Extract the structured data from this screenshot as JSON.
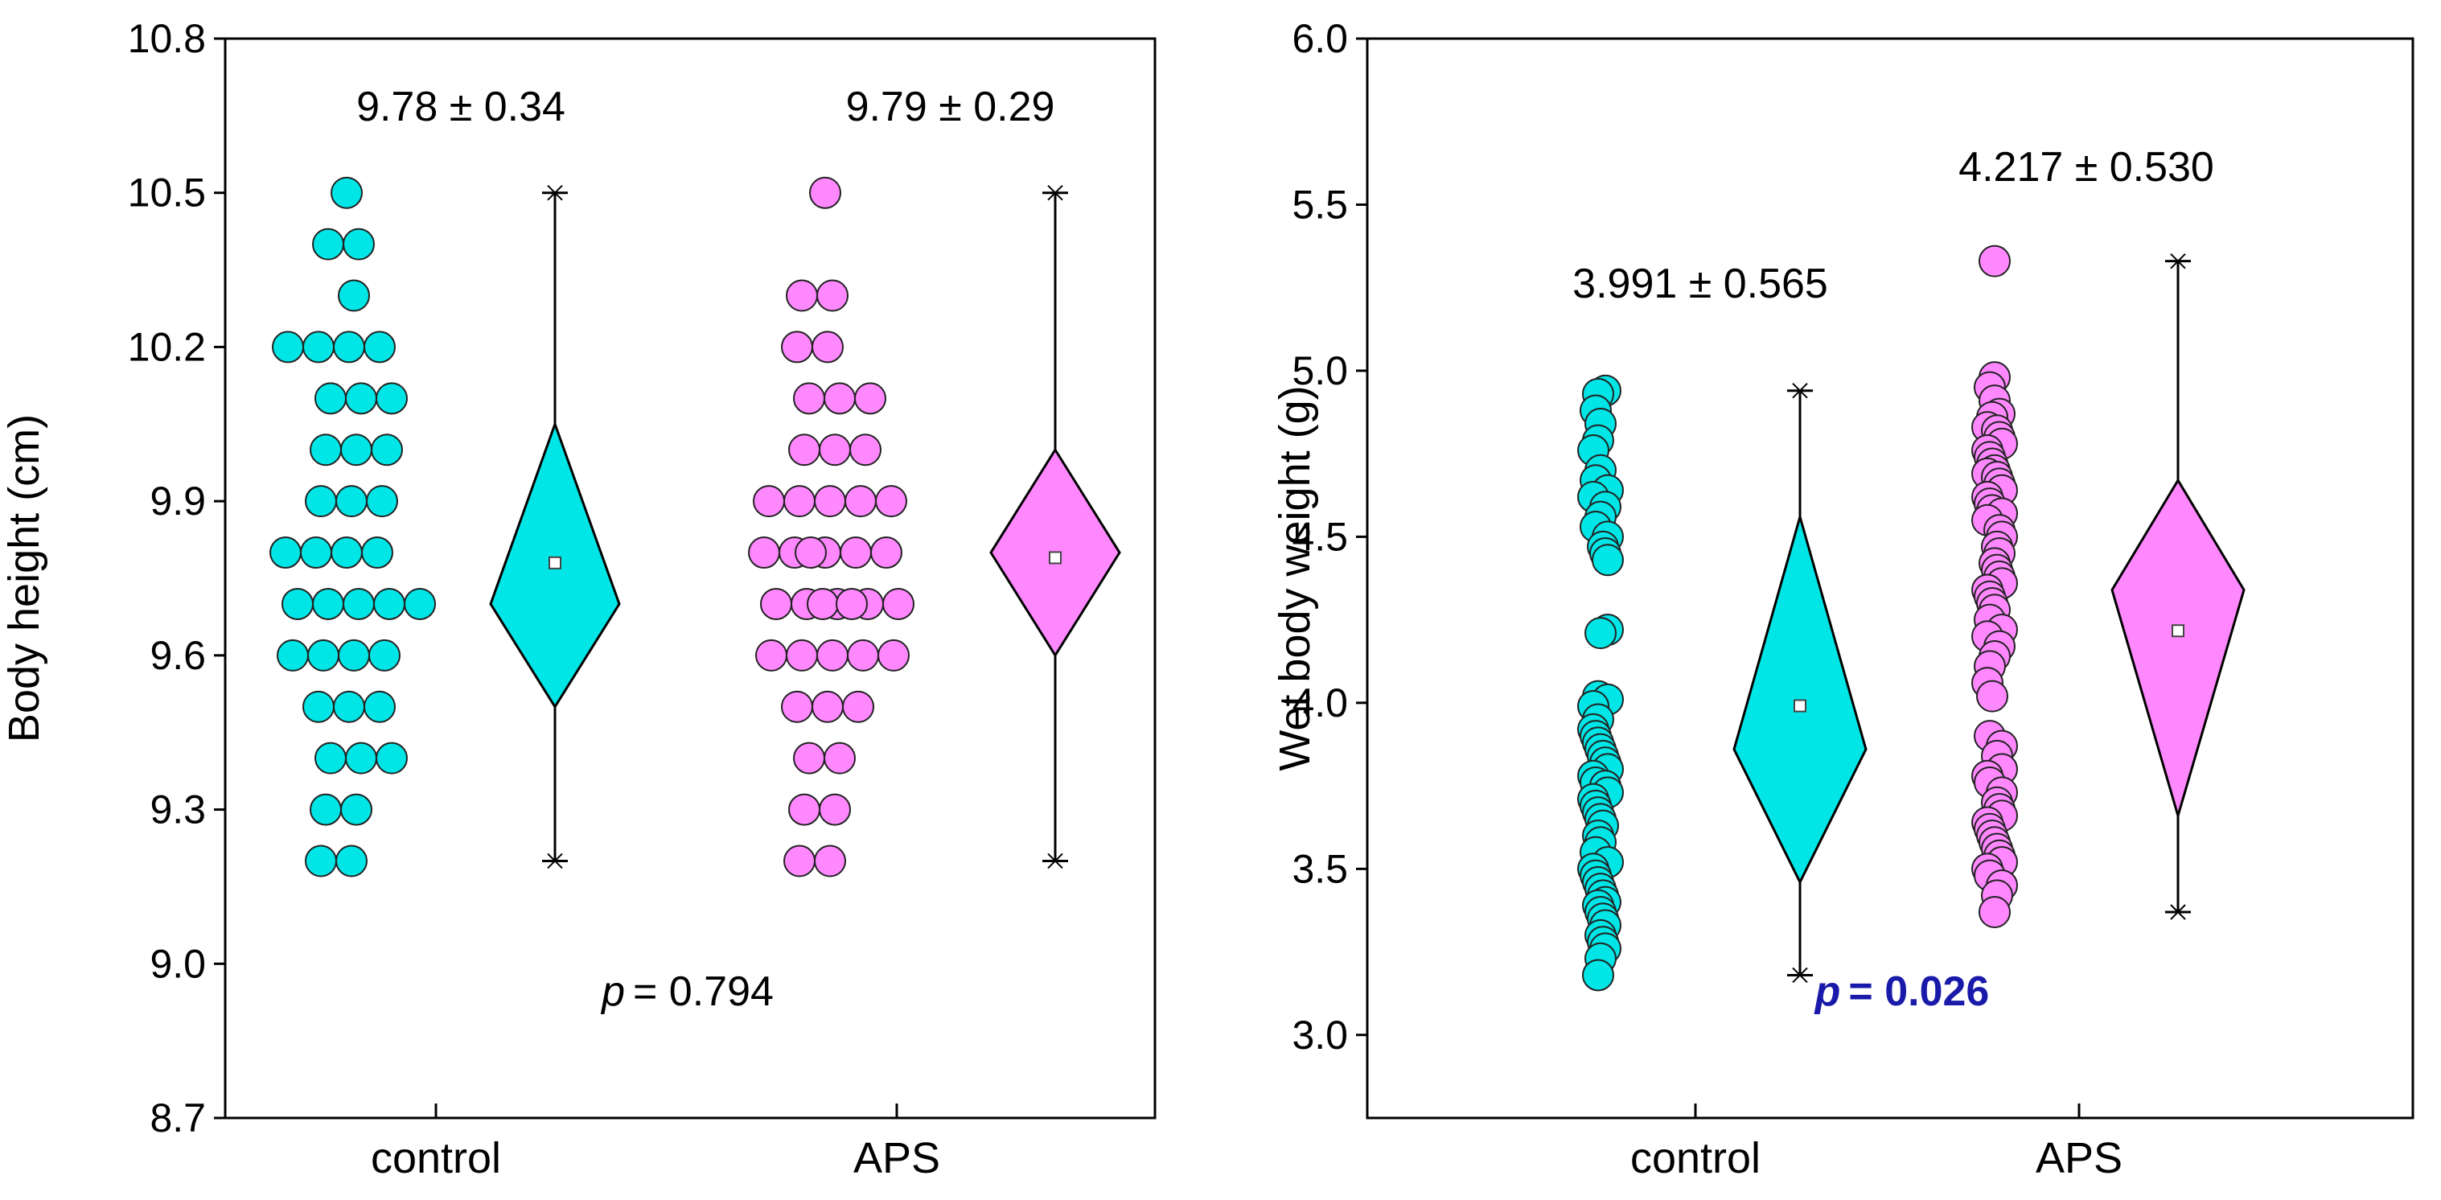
{
  "chart_data": [
    {
      "type": "scatter",
      "title": "",
      "xlabel": "",
      "ylabel": "Body height (cm)",
      "ylim": [
        8.7,
        10.8
      ],
      "yticks": [
        "8.7",
        "9.0",
        "9.3",
        "9.6",
        "9.9",
        "10.2",
        "10.5",
        "10.8"
      ],
      "categories": [
        "control",
        "APS"
      ],
      "series": [
        {
          "name": "control",
          "color": "#00e5e5",
          "stat_label": "9.78 ± 0.34",
          "mean": 9.78,
          "ci_low": 9.5,
          "ci_high": 10.05,
          "median": 9.7,
          "min": 9.2,
          "max": 10.5,
          "values": [
            10.5,
            10.4,
            10.4,
            10.3,
            10.2,
            10.2,
            10.2,
            10.2,
            10.1,
            10.1,
            10.1,
            10.0,
            10.0,
            10.0,
            9.9,
            9.9,
            9.9,
            9.8,
            9.8,
            9.8,
            9.8,
            9.7,
            9.7,
            9.7,
            9.7,
            9.7,
            9.6,
            9.6,
            9.6,
            9.6,
            9.5,
            9.5,
            9.5,
            9.4,
            9.4,
            9.4,
            9.3,
            9.3,
            9.2,
            9.2
          ]
        },
        {
          "name": "APS",
          "color": "#ff88ff",
          "stat_label": "9.79 ± 0.29",
          "mean": 9.79,
          "ci_low": 9.6,
          "ci_high": 10.0,
          "median": 9.8,
          "min": 9.2,
          "max": 10.5,
          "values": [
            10.5,
            10.3,
            10.3,
            10.2,
            10.2,
            10.1,
            10.1,
            10.1,
            10.0,
            10.0,
            10.0,
            9.9,
            9.9,
            9.9,
            9.9,
            9.9,
            9.8,
            9.8,
            9.8,
            9.8,
            9.8,
            9.8,
            9.7,
            9.7,
            9.7,
            9.7,
            9.7,
            9.7,
            9.7,
            9.6,
            9.6,
            9.6,
            9.6,
            9.6,
            9.5,
            9.5,
            9.5,
            9.4,
            9.4,
            9.3,
            9.3,
            9.2,
            9.2
          ]
        }
      ],
      "p_italic": "p",
      "p_value": "= 0.794",
      "p_color": "#000000"
    },
    {
      "type": "scatter",
      "title": "",
      "xlabel": "",
      "ylabel": "Wet body weight (g)",
      "ylim": [
        2.75,
        6.0
      ],
      "yticks": [
        "3.0",
        "3.5",
        "4.0",
        "4.5",
        "5.0",
        "5.5",
        "6.0"
      ],
      "categories": [
        "control",
        "APS"
      ],
      "series": [
        {
          "name": "control",
          "color": "#00e5e5",
          "stat_label": "3.991 ± 0.565",
          "mean": 3.991,
          "ci_low": 3.46,
          "ci_high": 4.56,
          "median": 3.86,
          "min": 3.18,
          "max": 4.94,
          "values": [
            4.94,
            4.93,
            4.88,
            4.84,
            4.79,
            4.76,
            4.7,
            4.67,
            4.64,
            4.62,
            4.59,
            4.56,
            4.53,
            4.5,
            4.47,
            4.45,
            4.43,
            4.22,
            4.21,
            4.02,
            4.01,
            3.99,
            3.95,
            3.92,
            3.9,
            3.88,
            3.86,
            3.84,
            3.82,
            3.8,
            3.78,
            3.76,
            3.75,
            3.73,
            3.71,
            3.69,
            3.67,
            3.65,
            3.63,
            3.6,
            3.58,
            3.55,
            3.52,
            3.5,
            3.48,
            3.46,
            3.44,
            3.42,
            3.4,
            3.39,
            3.37,
            3.35,
            3.33,
            3.3,
            3.28,
            3.26,
            3.23,
            3.18
          ]
        },
        {
          "name": "APS",
          "color": "#ff88ff",
          "stat_label": "4.217 ± 0.530",
          "mean": 4.217,
          "ci_low": 3.66,
          "ci_high": 4.67,
          "median": 4.34,
          "min": 3.37,
          "max": 5.33,
          "values": [
            5.33,
            4.98,
            4.95,
            4.91,
            4.87,
            4.86,
            4.83,
            4.82,
            4.8,
            4.78,
            4.76,
            4.74,
            4.72,
            4.7,
            4.69,
            4.68,
            4.66,
            4.64,
            4.62,
            4.6,
            4.58,
            4.57,
            4.55,
            4.52,
            4.5,
            4.47,
            4.45,
            4.42,
            4.4,
            4.38,
            4.36,
            4.34,
            4.32,
            4.3,
            4.28,
            4.25,
            4.22,
            4.2,
            4.17,
            4.14,
            4.11,
            4.06,
            4.02,
            3.9,
            3.87,
            3.84,
            3.8,
            3.78,
            3.76,
            3.73,
            3.7,
            3.68,
            3.66,
            3.64,
            3.62,
            3.6,
            3.58,
            3.56,
            3.54,
            3.52,
            3.5,
            3.48,
            3.45,
            3.42,
            3.37
          ]
        }
      ],
      "p_italic": "p",
      "p_value": "= 0.026",
      "p_color": "#1a1aaa"
    }
  ]
}
